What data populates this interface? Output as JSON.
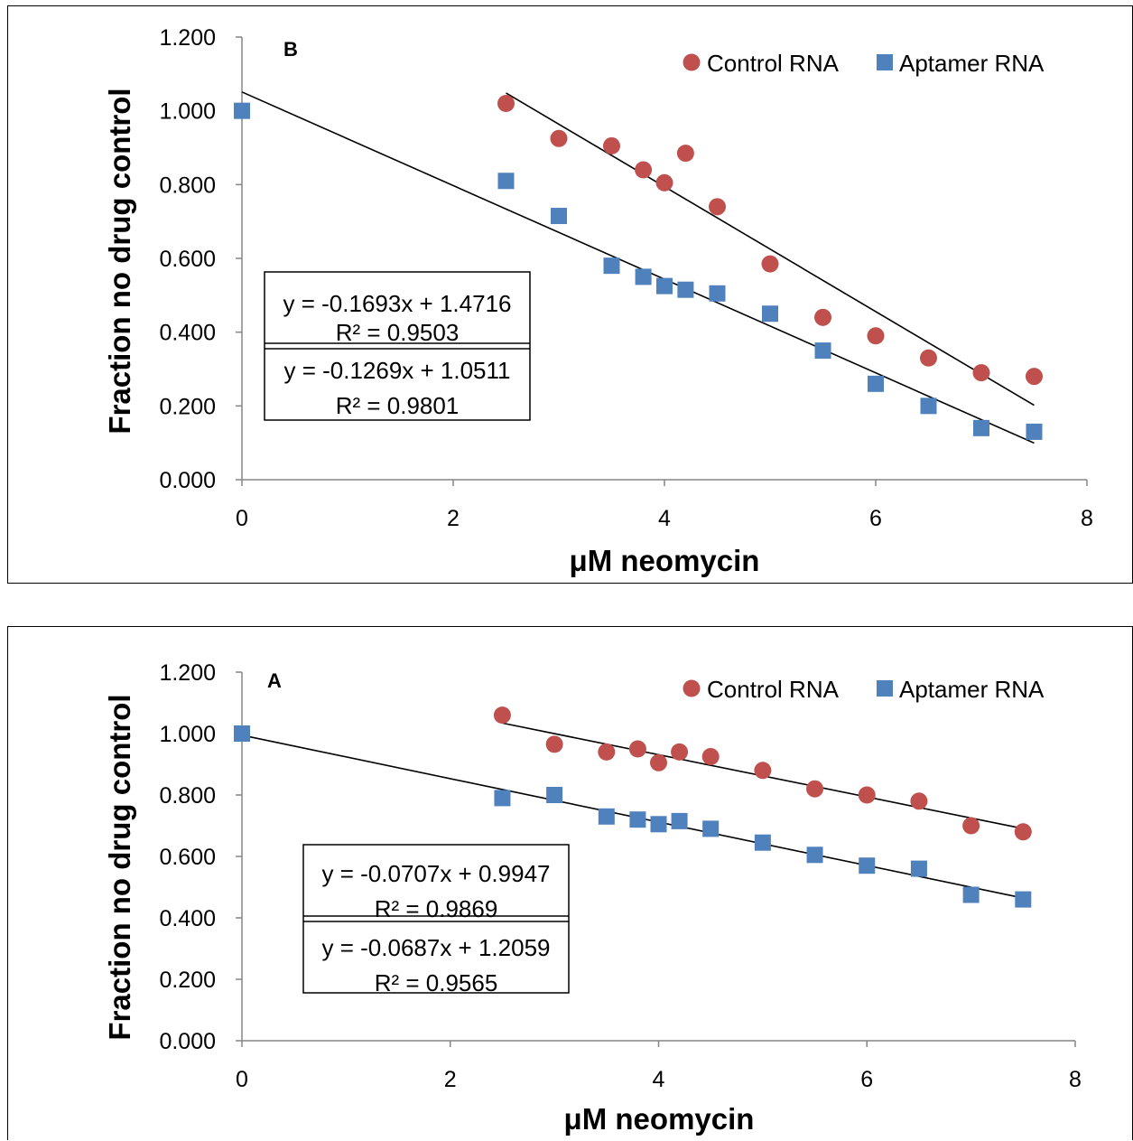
{
  "chart_data": [
    {
      "type": "scatter",
      "panel_label": "B",
      "xlabel": "μM neomycin",
      "ylabel": "Fraction no drug control",
      "xlim": [
        0,
        8
      ],
      "ylim": [
        0,
        1.2
      ],
      "x_ticks": [
        "0",
        "2",
        "4",
        "6",
        "8"
      ],
      "y_ticks": [
        "0.000",
        "0.200",
        "0.400",
        "0.600",
        "0.800",
        "1.000",
        "1.200"
      ],
      "legend_position": "top-right",
      "series": [
        {
          "name": "Control RNA",
          "marker": "circle",
          "color": "#c0504d",
          "points": [
            [
              2.5,
              1.02
            ],
            [
              3,
              0.925
            ],
            [
              3.5,
              0.905
            ],
            [
              3.8,
              0.84
            ],
            [
              4,
              0.805
            ],
            [
              4.2,
              0.885
            ],
            [
              4.5,
              0.74
            ],
            [
              5,
              0.585
            ],
            [
              5.5,
              0.44
            ],
            [
              6,
              0.39
            ],
            [
              6.5,
              0.33
            ],
            [
              7,
              0.29
            ],
            [
              7.5,
              0.28
            ]
          ],
          "trendline": {
            "slope": -0.1693,
            "intercept": 1.4716,
            "x_range": [
              2.5,
              7.5
            ]
          }
        },
        {
          "name": "Aptamer RNA",
          "marker": "square",
          "color": "#4f81bd",
          "points": [
            [
              0,
              1.0
            ],
            [
              2.5,
              0.81
            ],
            [
              3,
              0.715
            ],
            [
              3.5,
              0.58
            ],
            [
              3.8,
              0.55
            ],
            [
              4,
              0.525
            ],
            [
              4.2,
              0.515
            ],
            [
              4.5,
              0.505
            ],
            [
              5,
              0.45
            ],
            [
              5.5,
              0.35
            ],
            [
              6,
              0.26
            ],
            [
              6.5,
              0.2
            ],
            [
              7,
              0.14
            ],
            [
              7.5,
              0.13
            ]
          ],
          "trendline": {
            "slope": -0.1269,
            "intercept": 1.0511,
            "x_range": [
              0,
              7.5
            ]
          }
        }
      ],
      "equations": [
        {
          "eq": "y = -0.1693x + 1.4716",
          "r2": "R² = 0.9503"
        },
        {
          "eq": "y = -0.1269x + 1.0511",
          "r2": "R² = 0.9801"
        }
      ]
    },
    {
      "type": "scatter",
      "panel_label": "A",
      "xlabel": "μM neomycin",
      "ylabel": "Fraction no drug control",
      "xlim": [
        0,
        8
      ],
      "ylim": [
        0,
        1.2
      ],
      "x_ticks": [
        "0",
        "2",
        "4",
        "6",
        "8"
      ],
      "y_ticks": [
        "0.000",
        "0.200",
        "0.400",
        "0.600",
        "0.800",
        "1.000",
        "1.200"
      ],
      "legend_position": "top-right",
      "series": [
        {
          "name": "Control RNA",
          "marker": "circle",
          "color": "#c0504d",
          "points": [
            [
              2.5,
              1.06
            ],
            [
              3,
              0.965
            ],
            [
              3.5,
              0.94
            ],
            [
              3.8,
              0.95
            ],
            [
              4,
              0.905
            ],
            [
              4.2,
              0.94
            ],
            [
              4.5,
              0.925
            ],
            [
              5,
              0.88
            ],
            [
              5.5,
              0.82
            ],
            [
              6,
              0.8
            ],
            [
              6.5,
              0.78
            ],
            [
              7,
              0.7
            ],
            [
              7.5,
              0.68
            ]
          ],
          "trendline": {
            "slope": -0.0687,
            "intercept": 1.2059,
            "x_range": [
              2.5,
              7.5
            ]
          }
        },
        {
          "name": "Aptamer RNA",
          "marker": "square",
          "color": "#4f81bd",
          "points": [
            [
              0,
              1.0
            ],
            [
              2.5,
              0.79
            ],
            [
              3,
              0.8
            ],
            [
              3.5,
              0.73
            ],
            [
              3.8,
              0.72
            ],
            [
              4,
              0.705
            ],
            [
              4.2,
              0.715
            ],
            [
              4.5,
              0.69
            ],
            [
              5,
              0.645
            ],
            [
              5.5,
              0.605
            ],
            [
              6,
              0.57
            ],
            [
              6.5,
              0.56
            ],
            [
              7,
              0.475
            ],
            [
              7.5,
              0.46
            ]
          ],
          "trendline": {
            "slope": -0.0707,
            "intercept": 0.9947,
            "x_range": [
              0,
              7.5
            ]
          }
        }
      ],
      "equations": [
        {
          "eq": "y = -0.0707x + 0.9947",
          "r2": "R² = 0.9869"
        },
        {
          "eq": "y = -0.0687x + 1.2059",
          "r2": "R² = 0.9565"
        }
      ]
    }
  ]
}
